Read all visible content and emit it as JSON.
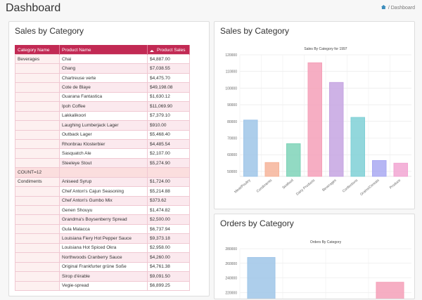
{
  "header": {
    "title": "Dashboard",
    "breadcrumb": "Dashboard"
  },
  "sales_table": {
    "heading": "Sales by Category",
    "columns": [
      "Category Name",
      "Product Name",
      "Product Sales"
    ],
    "rows": [
      [
        "Beverages",
        "Chai",
        "$4,887.00"
      ],
      [
        null,
        "Chang",
        "$7,038.55"
      ],
      [
        null,
        "Chartreuse verte",
        "$4,475.70"
      ],
      [
        null,
        "Cote de Blaye",
        "$49,198.08"
      ],
      [
        null,
        "Guarana Fantastica",
        "$1,630.12"
      ],
      [
        null,
        "Ipoh Coffee",
        "$11,069.90"
      ],
      [
        null,
        "Lakkalikoori",
        "$7,379.10"
      ],
      [
        null,
        "Laughing Lumberjack Lager",
        "$910.00"
      ],
      [
        null,
        "Outback Lager",
        "$5,468.40"
      ],
      [
        null,
        "Rhonbrau Klosterbier",
        "$4,485.54"
      ],
      [
        null,
        "Sasquatch Ale",
        "$2,107.00"
      ],
      [
        null,
        "Steeleye Stout",
        "$5,274.90"
      ],
      [
        "COUNT=12",
        null,
        null
      ],
      [
        "Condiments",
        "Aniseed Syrup",
        "$1,724.00"
      ],
      [
        null,
        "Chef Anton's Cajun Seasoning",
        "$5,214.88"
      ],
      [
        null,
        "Chef Anton's Gumbo Mix",
        "$373.62"
      ],
      [
        null,
        "Genen Shouyu",
        "$1,474.82"
      ],
      [
        null,
        "Grandma's Boysenberry Spread",
        "$2,500.00"
      ],
      [
        null,
        "Gula Malacca",
        "$6,737.94"
      ],
      [
        null,
        "Louisiana Fiery Hot Pepper Sauce",
        "$9,373.18"
      ],
      [
        null,
        "Louisiana Hot Spiced Okra",
        "$2,958.00"
      ],
      [
        null,
        "Northwoods Cranberry Sauce",
        "$4,260.00"
      ],
      [
        null,
        "Original Frankfurter grüne Soße",
        "$4,761.38"
      ],
      [
        null,
        "Sirop d'érable",
        "$9,091.50"
      ],
      [
        null,
        "Vegie-spread",
        "$6,899.25"
      ]
    ]
  },
  "chart_data": [
    {
      "type": "bar",
      "heading": "Sales by Category",
      "title": "Sales By Category for 1997",
      "categories": [
        "Meat/Poultry",
        "Condiments",
        "Seafood",
        "Dairy Products",
        "Beverages",
        "Confections",
        "Grains/Cereals",
        "Produce"
      ],
      "values": [
        80800,
        55300,
        66600,
        115200,
        103400,
        82400,
        56500,
        54900
      ],
      "colors": [
        "#9fc5e8",
        "#f6b49a",
        "#7fd3b8",
        "#f5a0b8",
        "#c5a5e2",
        "#7fd0d6",
        "#a9a9f2",
        "#f2a6d2"
      ],
      "ylim": [
        47000,
        120000
      ],
      "yticks": [
        50000,
        60000,
        70000,
        80000,
        90000,
        100000,
        110000,
        120000
      ],
      "grid": true
    },
    {
      "type": "bar",
      "heading": "Orders by Category",
      "title": "Orders By Category",
      "categories": [
        null,
        null,
        null,
        null
      ],
      "values": [
        268000,
        null,
        null,
        234000
      ],
      "colors": [
        "#9fc5e8",
        "#f6b49a",
        "#7fd3b8",
        "#f5a0b8"
      ],
      "ylim": [
        200000,
        280000
      ],
      "yticks": [
        220000,
        240000,
        260000,
        280000
      ],
      "grid": true
    }
  ]
}
